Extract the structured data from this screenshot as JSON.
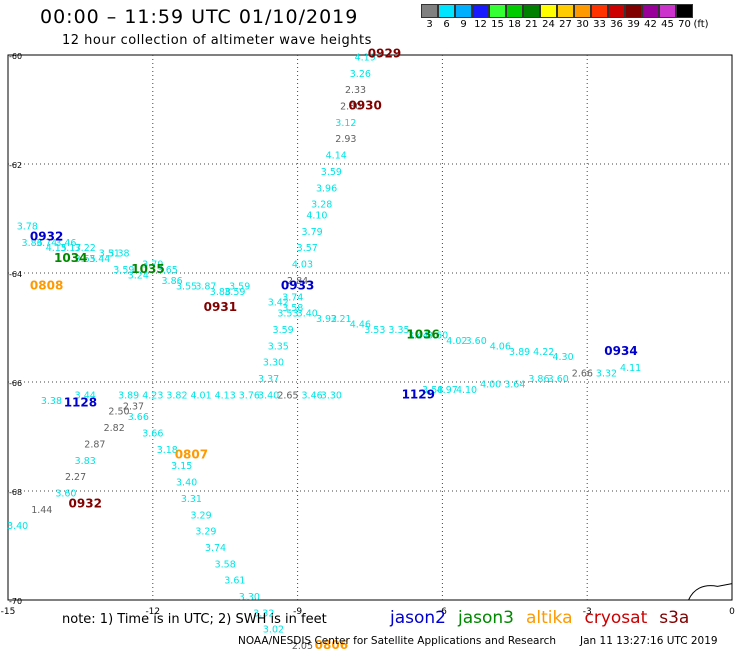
{
  "title": "00:00 – 11:59 UTC 01/10/2019",
  "subtitle": "12 hour collection of altimeter wave heights",
  "scale": {
    "unit": "(ft)",
    "levels": [
      {
        "label": "3",
        "color": "#808080"
      },
      {
        "label": "6",
        "color": "#00e5ff"
      },
      {
        "label": "9",
        "color": "#00b0ff"
      },
      {
        "label": "12",
        "color": "#1a1aff"
      },
      {
        "label": "15",
        "color": "#33ff33"
      },
      {
        "label": "18",
        "color": "#00cc00"
      },
      {
        "label": "21",
        "color": "#008000"
      },
      {
        "label": "24",
        "color": "#ffff00"
      },
      {
        "label": "27",
        "color": "#ffcc00"
      },
      {
        "label": "30",
        "color": "#ff9900"
      },
      {
        "label": "33",
        "color": "#ff3300"
      },
      {
        "label": "36",
        "color": "#cc0000"
      },
      {
        "label": "39",
        "color": "#800000"
      },
      {
        "label": "42",
        "color": "#990099"
      },
      {
        "label": "45",
        "color": "#cc33cc"
      },
      {
        "label": "70",
        "color": "#000000"
      }
    ]
  },
  "axes": {
    "lat_ticks": [
      "-60",
      "-62",
      "-64",
      "-66",
      "-68",
      "-70"
    ],
    "lon_ticks": [
      "-15",
      "-12",
      "-9",
      "-6",
      "-3",
      "0"
    ]
  },
  "colors": {
    "cyan": "#00e5e5",
    "gray": "#606060",
    "jason2": "#0000cc",
    "jason3": "#008800",
    "altika": "#ff9900",
    "cryosat": "#cc0000",
    "s3a": "#800000"
  },
  "tracks": [
    {
      "satellite": "s3a",
      "time": "0929",
      "points": [
        [
          "4.19",
          -7.6,
          -60.1
        ],
        [
          "3.26",
          -7.7,
          -60.4
        ],
        [
          "2.33",
          -7.8,
          -60.7
        ],
        [
          "2.80",
          -7.9,
          -61.0
        ],
        [
          "3.12",
          -8.0,
          -61.3
        ],
        [
          "2.93",
          -8.0,
          -61.6
        ],
        [
          "4.14",
          -8.2,
          -61.9
        ],
        [
          "3.59",
          -8.3,
          -62.2
        ],
        [
          "3.96",
          -8.4,
          -62.5
        ],
        [
          "3.28",
          -8.5,
          -62.8
        ],
        [
          "4.10",
          -8.6,
          -63.0
        ],
        [
          "3.79",
          -8.7,
          -63.3
        ],
        [
          "3.57",
          -8.8,
          -63.6
        ],
        [
          "4.03",
          -8.9,
          -63.9
        ],
        [
          "2.84",
          -9.0,
          -64.2
        ],
        [
          "3.74",
          -9.1,
          -64.5
        ],
        [
          "3.53",
          -9.2,
          -64.8
        ],
        [
          "3.59",
          -9.3,
          -65.1
        ],
        [
          "3.35",
          -9.4,
          -65.4
        ],
        [
          "3.30",
          -9.5,
          -65.7
        ],
        [
          "3.37",
          -9.6,
          -66.0
        ]
      ]
    },
    {
      "satellite": "s3a",
      "time": "0930",
      "points": []
    },
    {
      "satellite": "jason2",
      "time": "0932",
      "points": [
        [
          "3.78",
          -14.6,
          -63.2
        ],
        [
          "3.86",
          -14.5,
          -63.5
        ],
        [
          "3.74",
          -14.2,
          -63.5
        ],
        [
          "4.15",
          -14.0,
          -63.6
        ],
        [
          "3.46",
          -13.8,
          -63.5
        ],
        [
          "3.17",
          -13.7,
          -63.6
        ],
        [
          "3.22",
          -13.4,
          -63.6
        ],
        [
          "3.55",
          -13.4,
          -63.8
        ],
        [
          "3.44",
          -13.1,
          -63.8
        ],
        [
          "3.51",
          -12.9,
          -63.7
        ],
        [
          "3.38",
          -12.7,
          -63.7
        ],
        [
          "3.59",
          -12.6,
          -64.0
        ],
        [
          "3.24",
          -12.3,
          -64.1
        ],
        [
          "3.79",
          -12.0,
          -63.9
        ],
        [
          "3.65",
          -11.7,
          -64.0
        ],
        [
          "3.86",
          -11.6,
          -64.2
        ],
        [
          "3.55",
          -11.3,
          -64.3
        ],
        [
          "3.87",
          -10.9,
          -64.3
        ],
        [
          "3.88",
          -10.6,
          -64.4
        ],
        [
          "3.59",
          -10.3,
          -64.4
        ],
        [
          "3.59",
          -10.2,
          -64.3
        ]
      ]
    },
    {
      "satellite": "jason3",
      "time": "1036",
      "points": [
        [
          "3.42",
          -9.4,
          -64.6
        ],
        [
          "3.58",
          -9.1,
          -64.7
        ],
        [
          "3.40",
          -8.8,
          -64.8
        ],
        [
          "3.92",
          -8.4,
          -64.9
        ],
        [
          "3.21",
          -8.1,
          -64.9
        ],
        [
          "4.46",
          -7.7,
          -65.0
        ],
        [
          "3.53",
          -7.4,
          -65.1
        ],
        [
          "3.35",
          -6.9,
          -65.1
        ],
        [
          "3.44",
          -6.5,
          -65.2
        ],
        [
          "3.60",
          -6.1,
          -65.2
        ],
        [
          "4.02",
          -5.7,
          -65.3
        ],
        [
          "3.60",
          -5.3,
          -65.3
        ],
        [
          "4.06",
          -4.8,
          -65.4
        ],
        [
          "3.89",
          -4.4,
          -65.5
        ],
        [
          "4.22",
          -3.9,
          -65.5
        ],
        [
          "4.30",
          -3.5,
          -65.6
        ]
      ]
    },
    {
      "satellite": "jason2",
      "time": "1128",
      "points": [
        [
          "3.38",
          -14.1,
          -66.4
        ],
        [
          "3.44",
          -13.4,
          -66.3
        ],
        [
          "3.89",
          -12.5,
          -66.3
        ],
        [
          "4.23",
          -12.0,
          -66.3
        ],
        [
          "3.82",
          -11.5,
          -66.3
        ],
        [
          "4.01",
          -11.0,
          -66.3
        ],
        [
          "4.13",
          -10.5,
          -66.3
        ],
        [
          "3.76",
          -10.0,
          -66.3
        ],
        [
          "3.40",
          -9.6,
          -66.3
        ],
        [
          "2.65",
          -9.2,
          -66.3
        ],
        [
          "3.46",
          -8.7,
          -66.3
        ],
        [
          "3.30",
          -8.3,
          -66.3
        ],
        [
          "3.58",
          -6.2,
          -66.2
        ],
        [
          "4.97",
          -5.9,
          -66.2
        ],
        [
          "4.10",
          -5.5,
          -66.2
        ],
        [
          "4.00",
          -5.0,
          -66.1
        ],
        [
          "3.64",
          -4.5,
          -66.1
        ],
        [
          "3.86",
          -4.0,
          -66.0
        ],
        [
          "3.60",
          -3.6,
          -66.0
        ],
        [
          "2.66",
          -3.1,
          -65.9
        ],
        [
          "3.32",
          -2.6,
          -65.9
        ],
        [
          "4.11",
          -2.1,
          -65.8
        ]
      ]
    },
    {
      "satellite": "altika",
      "time": "0807",
      "points": [
        [
          "3.66",
          -12.3,
          -66.7
        ],
        [
          "3.66",
          -12.0,
          -67.0
        ],
        [
          "3.18",
          -11.7,
          -67.3
        ],
        [
          "3.15",
          -11.4,
          -67.6
        ],
        [
          "3.40",
          -11.3,
          -67.9
        ],
        [
          "3.31",
          -11.2,
          -68.2
        ],
        [
          "3.29",
          -11.0,
          -68.5
        ],
        [
          "3.29",
          -10.9,
          -68.8
        ],
        [
          "3.74",
          -10.7,
          -69.1
        ],
        [
          "3.58",
          -10.5,
          -69.4
        ],
        [
          "3.61",
          -10.3,
          -69.7
        ],
        [
          "3.30",
          -10.0,
          -70.0
        ]
      ]
    },
    {
      "satellite": "altika",
      "time": "0806",
      "points": [
        [
          "3.32",
          -9.7,
          -70.3
        ],
        [
          "3.02",
          -9.5,
          -70.6
        ],
        [
          "2.05",
          -8.9,
          -70.9
        ]
      ]
    },
    {
      "satellite": "cryosat",
      "time": "0932",
      "points": [
        [
          "2.37",
          -12.4,
          -66.5
        ],
        [
          "2.50",
          -12.7,
          -66.6
        ],
        [
          "2.82",
          -12.8,
          -66.9
        ],
        [
          "2.87",
          -13.2,
          -67.2
        ],
        [
          "3.83",
          -13.4,
          -67.5
        ],
        [
          "2.27",
          -13.6,
          -67.8
        ],
        [
          "3.60",
          -13.8,
          -68.1
        ],
        [
          "1.44",
          -14.3,
          -68.4
        ],
        [
          "3.40",
          -14.8,
          -68.7
        ]
      ]
    }
  ],
  "labels": [
    {
      "text": "0929",
      "sat": "s3a"
    },
    {
      "text": "0930",
      "sat": "s3a"
    },
    {
      "text": "0932",
      "sat": "jason2"
    },
    {
      "text": "1034",
      "sat": "jason3"
    },
    {
      "text": "1035",
      "sat": "jason3"
    },
    {
      "text": "0808",
      "sat": "altika"
    },
    {
      "text": "0931",
      "sat": "s3a"
    },
    {
      "text": "0933",
      "sat": "jason2"
    },
    {
      "text": "1036",
      "sat": "jason3"
    },
    {
      "text": "0934",
      "sat": "jason2"
    },
    {
      "text": "1128",
      "sat": "jason2"
    },
    {
      "text": "1129",
      "sat": "jason2"
    },
    {
      "text": "0807",
      "sat": "altika"
    },
    {
      "text": "0932",
      "sat": "s3a"
    },
    {
      "text": "0806",
      "sat": "altika"
    }
  ],
  "note": "note:  1) Time is in UTC;  2) SWH is in feet",
  "satellites": [
    {
      "name": "jason2",
      "key": "jason2"
    },
    {
      "name": "jason3",
      "key": "jason3"
    },
    {
      "name": "altika",
      "key": "altika"
    },
    {
      "name": "cryosat",
      "key": "cryosat"
    },
    {
      "name": "s3a",
      "key": "s3a"
    }
  ],
  "credit": "NOAA/NESDIS Center for Satellite Applications and Research",
  "timestamp": "Jan 11 13:27:16 UTC 2019"
}
